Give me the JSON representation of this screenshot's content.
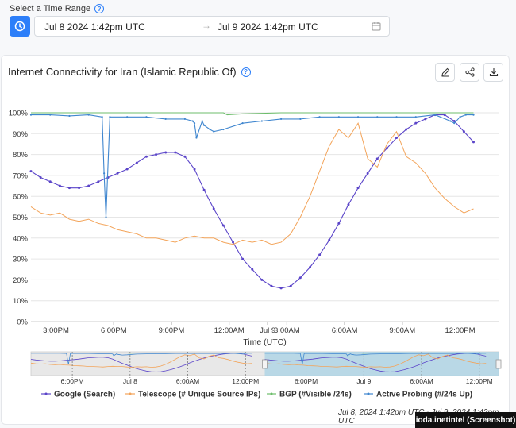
{
  "time_range": {
    "label": "Select a Time Range",
    "start": "Jul 8 2024 1:42pm UTC",
    "end": "Jul 9 2024 1:42pm UTC"
  },
  "card": {
    "title": "Internet Connectivity for Iran (Islamic Republic Of)"
  },
  "icons": {
    "help": "help-icon",
    "clock": "clock-icon",
    "calendar": "calendar-icon",
    "edit": "pencil-icon",
    "share": "share-icon",
    "download": "download-icon"
  },
  "footer": {
    "range_note": "Jul 8, 2024 1:42pm UTC - Jul 9, 2024 1:42pm UTC",
    "credit": "ioda.inetintel (Screenshot)"
  },
  "colors": {
    "accent": "#2d7ff9",
    "google": "#5b45c9",
    "telescope": "#f3a45a",
    "bgp": "#6dbd6b",
    "probing": "#3f86cf",
    "nav_selection": "#a9d3e6"
  },
  "chart_data": {
    "type": "line",
    "xlabel": "Time (UTC)",
    "ylabel": "",
    "ylim": [
      0,
      100
    ],
    "yticks": [
      "0%",
      "10%",
      "20%",
      "30%",
      "40%",
      "50%",
      "60%",
      "70%",
      "80%",
      "90%",
      "100%"
    ],
    "xticks": [
      "3:00PM",
      "6:00PM",
      "9:00PM",
      "12:00AM",
      "Jul 9",
      "3:00AM",
      "6:00AM",
      "9:00AM",
      "12:00PM"
    ],
    "x_unit": "hours since Jul 8 2024 1:42pm UTC",
    "grid": true,
    "legend_position": "bottom",
    "series": [
      {
        "name": "Google (Search)",
        "x": [
          0,
          0.5,
          1,
          1.5,
          2,
          2.5,
          3,
          3.5,
          4,
          4.5,
          5,
          5.5,
          6,
          6.5,
          7,
          7.5,
          8,
          8.5,
          9,
          9.5,
          10,
          10.5,
          11,
          11.5,
          12,
          12.5,
          13,
          13.5,
          14,
          14.5,
          15,
          15.5,
          16,
          16.5,
          17,
          17.5,
          18,
          18.5,
          19,
          19.5,
          20,
          20.5,
          21,
          21.5,
          22,
          22.5,
          23
        ],
        "values": [
          72,
          69,
          67,
          65,
          64,
          64,
          65,
          67,
          69,
          71,
          73,
          76,
          79,
          80,
          81,
          81,
          79,
          73,
          63,
          54,
          46,
          38,
          30,
          25,
          20,
          17,
          16,
          17,
          21,
          26,
          32,
          39,
          47,
          56,
          64,
          71,
          78,
          83,
          88,
          92,
          95,
          97,
          99,
          99,
          96,
          91,
          86
        ]
      },
      {
        "name": "Telescope (# Unique Source IPs)",
        "x": [
          0,
          0.5,
          1,
          1.5,
          2,
          2.5,
          3,
          3.5,
          4,
          4.5,
          5,
          5.5,
          6,
          6.5,
          7,
          7.5,
          8,
          8.5,
          9,
          9.5,
          10,
          10.5,
          11,
          11.5,
          12,
          12.5,
          13,
          13.5,
          14,
          14.5,
          15,
          15.5,
          16,
          16.5,
          17,
          17.5,
          18,
          18.5,
          19,
          19.5,
          20,
          20.5,
          21,
          21.5,
          22,
          22.5,
          23
        ],
        "values": [
          55,
          52,
          51,
          52,
          49,
          48,
          49,
          47,
          46,
          44,
          43,
          42,
          40,
          40,
          39,
          38,
          40,
          41,
          40,
          40,
          38,
          37,
          39,
          38,
          39,
          37,
          38,
          42,
          50,
          60,
          72,
          84,
          92,
          88,
          95,
          78,
          74,
          85,
          91,
          79,
          76,
          71,
          64,
          59,
          55,
          52,
          54
        ]
      },
      {
        "name": "BGP (#Visible /24s)",
        "x": [
          0,
          2,
          4,
          6,
          8,
          9,
          9.5,
          10,
          10.2,
          11,
          13,
          15,
          17,
          19,
          21,
          23
        ],
        "values": [
          100,
          100,
          100,
          100,
          100,
          100,
          100,
          100,
          99,
          99.5,
          100,
          100,
          100,
          100,
          100,
          100
        ]
      },
      {
        "name": "Active Probing (#/24s Up)",
        "x": [
          0,
          1,
          2,
          3,
          3.7,
          3.8,
          3.9,
          4.1,
          5,
          6,
          7,
          8,
          8.4,
          8.5,
          8.6,
          8.9,
          9,
          9.3,
          9.5,
          10,
          11,
          12,
          13,
          14,
          15,
          16,
          17,
          18,
          19,
          20,
          21,
          21.8,
          22,
          22.3,
          22.6,
          23
        ],
        "values": [
          99,
          99,
          98.5,
          99,
          98,
          71,
          50,
          98,
          98,
          98,
          97,
          97,
          96,
          95,
          88,
          96,
          94,
          92,
          91,
          92,
          95,
          96,
          97,
          97,
          98,
          98,
          98,
          98,
          98,
          98,
          99,
          96,
          95,
          98,
          99,
          99
        ]
      }
    ]
  }
}
